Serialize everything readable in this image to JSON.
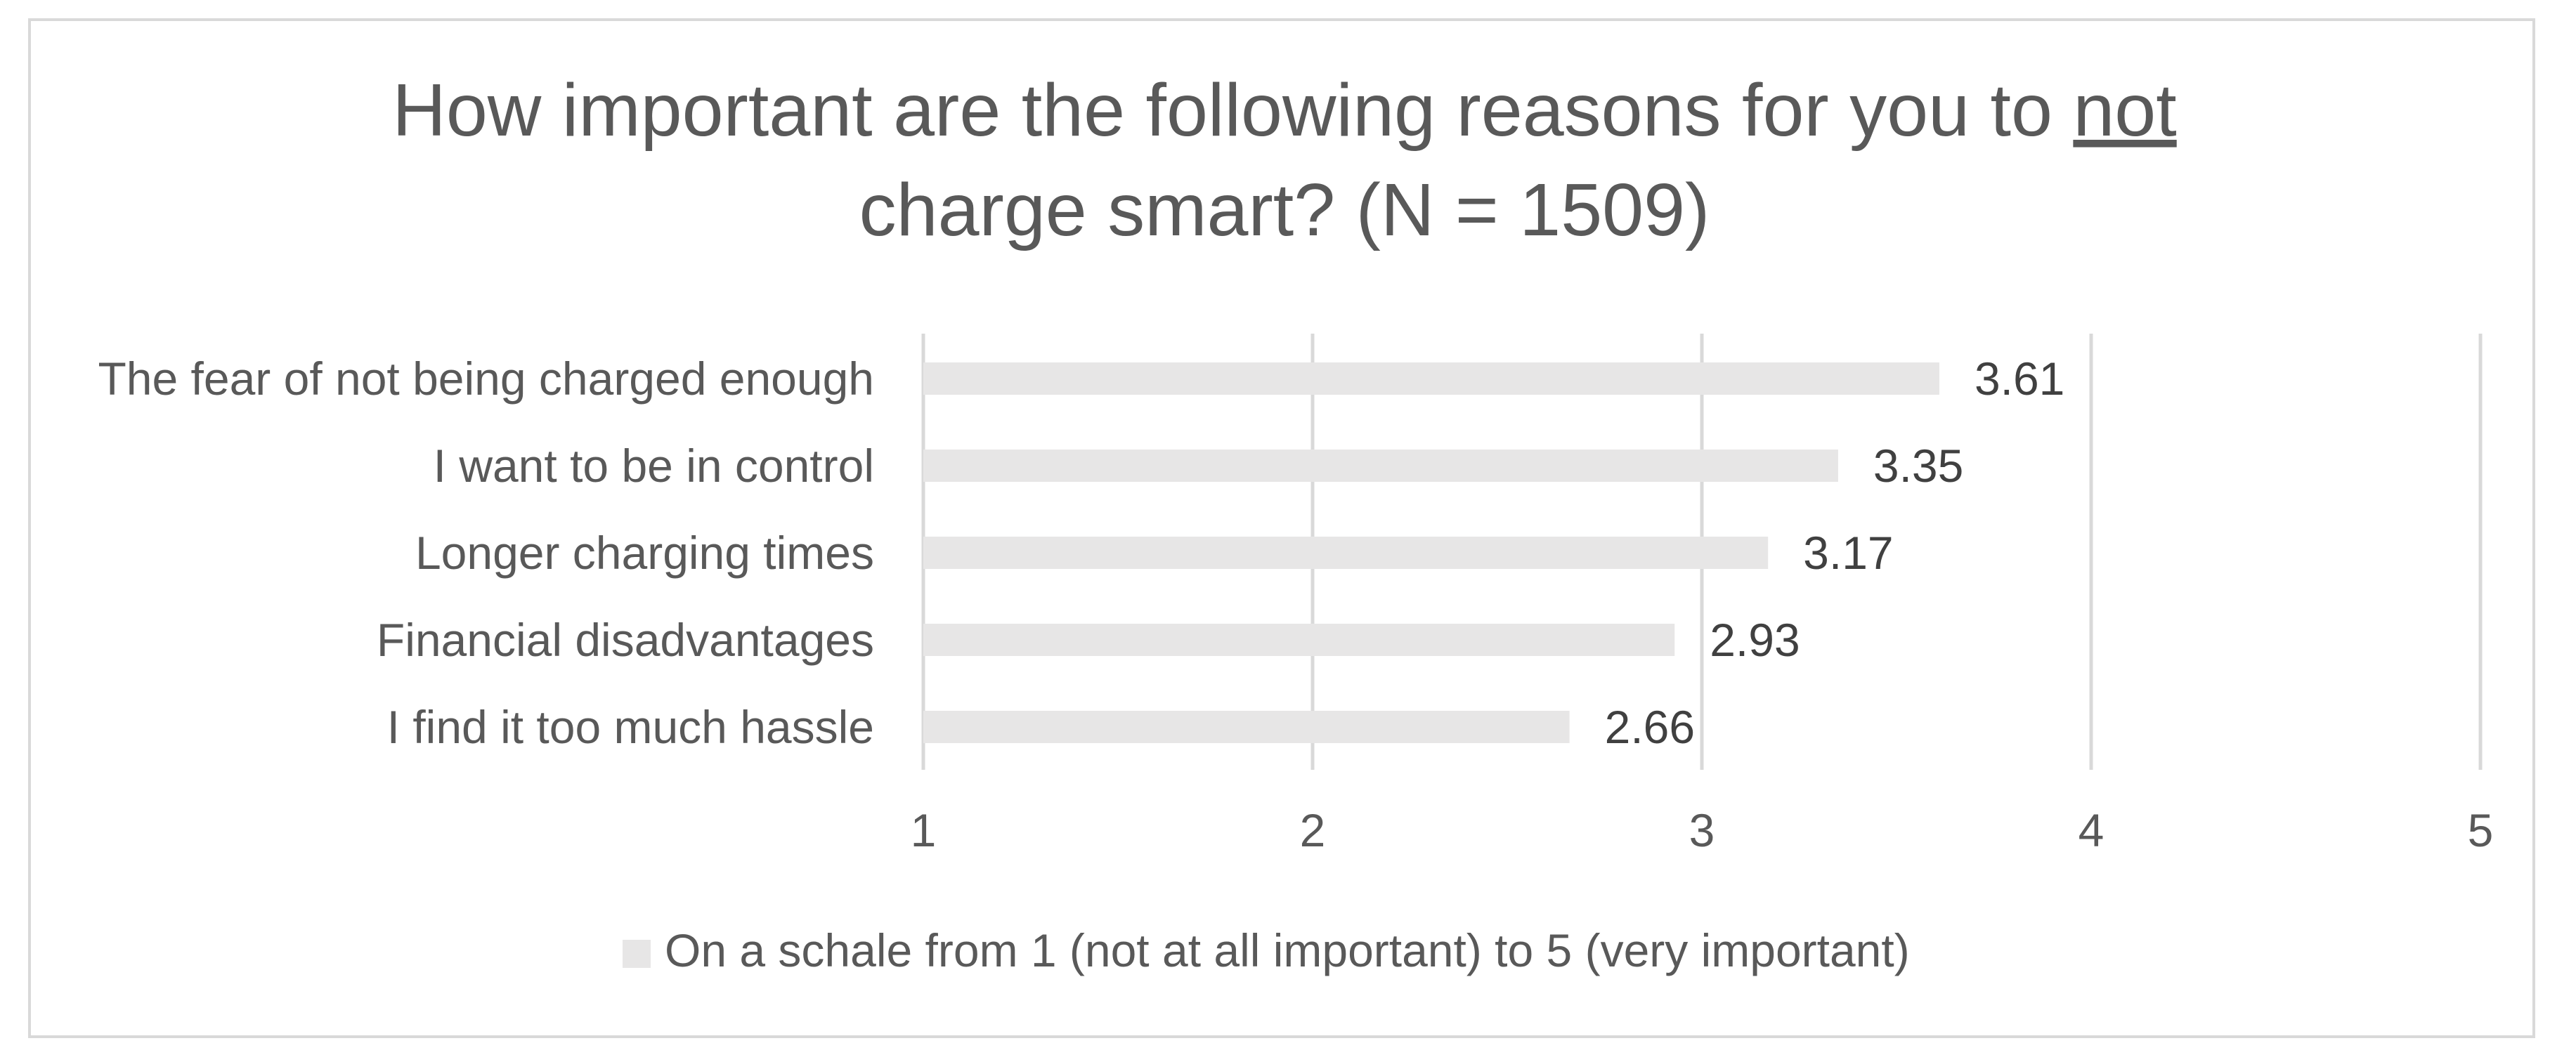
{
  "chart_data": {
    "type": "bar",
    "orientation": "horizontal",
    "title": {
      "line1_prefix": "How important are the following reasons for you to ",
      "line1_emphasis": "not",
      "line2": "charge smart? (N = 1509)"
    },
    "categories": [
      "The fear of not being charged enough",
      "I want to be in control",
      "Longer charging times",
      "Financial disadvantages",
      "I find it too much hassle"
    ],
    "series": [
      {
        "name": "On a schale from 1 (not at all important) to 5 (very important)",
        "values": [
          3.61,
          3.35,
          3.17,
          2.93,
          2.66
        ],
        "color": "#e7e6e6"
      }
    ],
    "value_labels": [
      "3.61",
      "3.35",
      "3.17",
      "2.93",
      "2.66"
    ],
    "xlim": [
      1,
      5
    ],
    "x_ticks": [
      "1",
      "2",
      "3",
      "4",
      "5"
    ],
    "gridlines": true,
    "gridline_color": "#d9d9d9",
    "legend_position": "bottom"
  }
}
